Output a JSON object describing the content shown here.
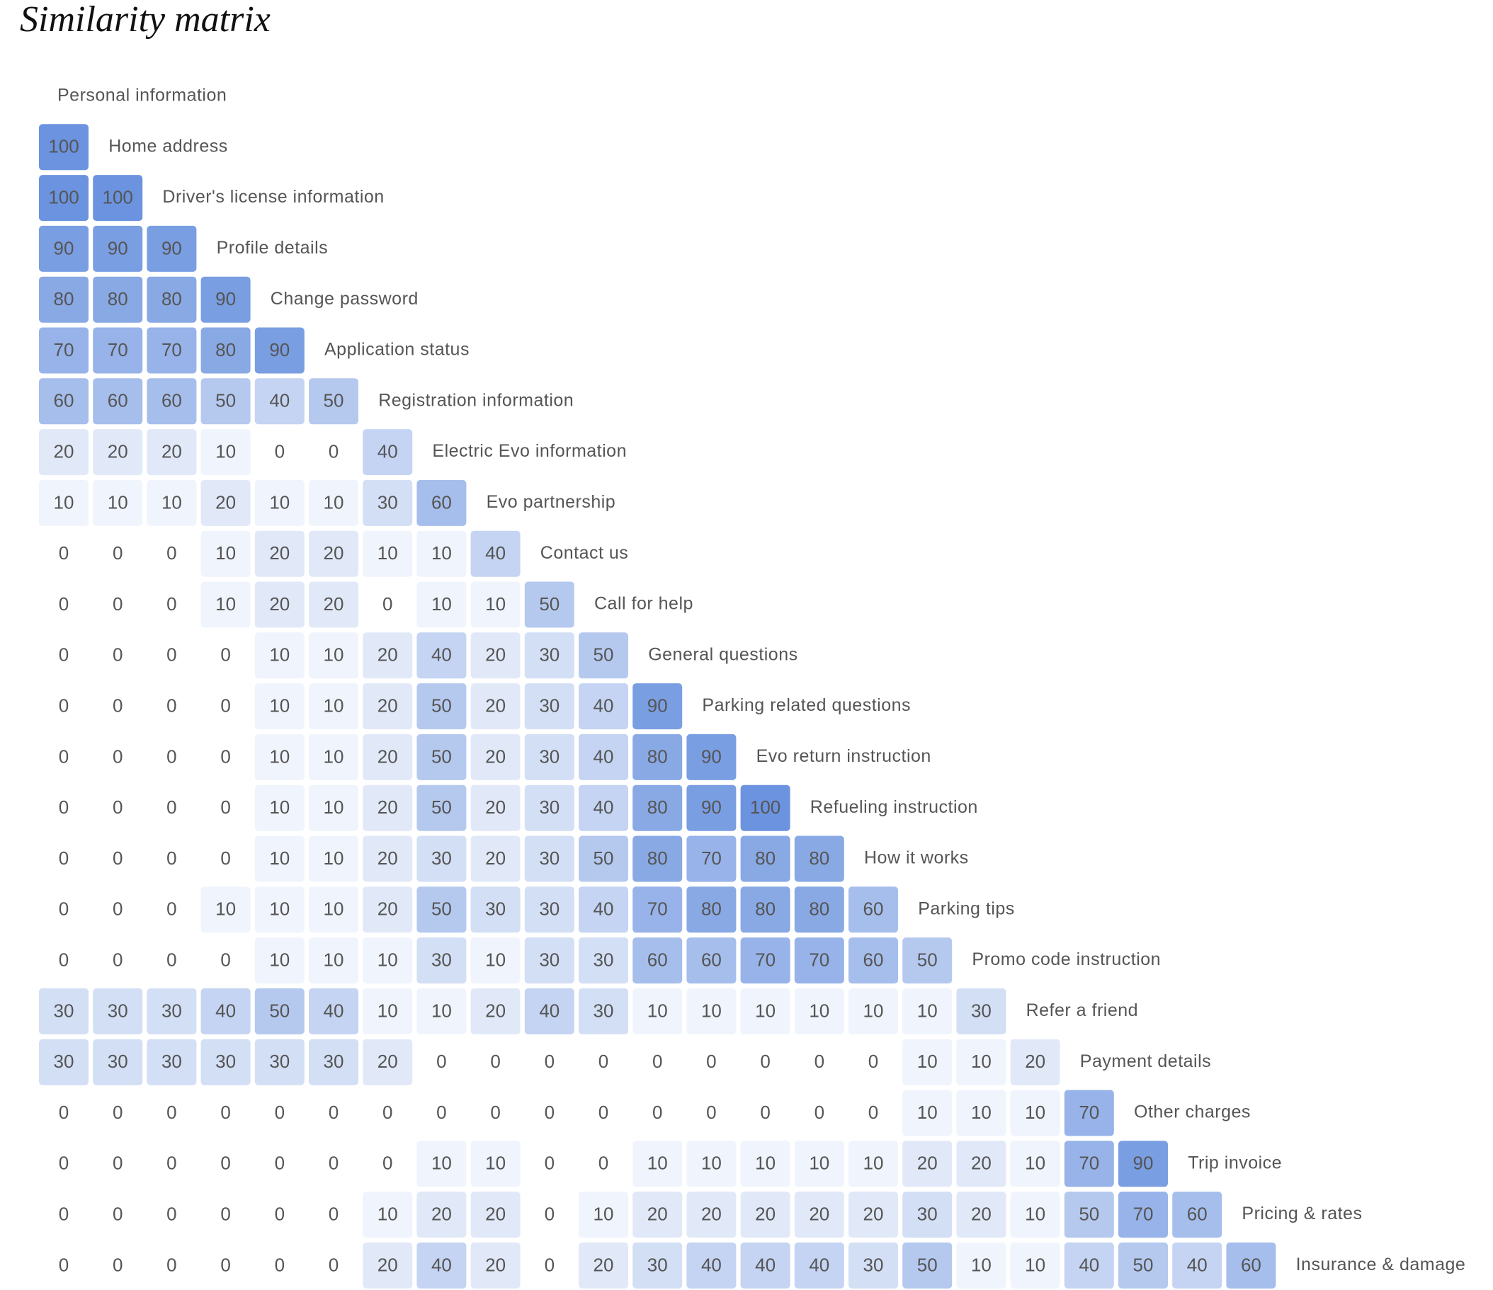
{
  "chart_data": {
    "type": "heatmap",
    "title": "Similarity matrix",
    "color": "#6b93df",
    "labels": [
      "Personal information",
      "Home address",
      "Driver's license information",
      "Profile details",
      "Change password",
      "Application status",
      "Registration information",
      "Electric Evo information",
      "Evo partnership",
      "Contact us",
      "Call for help",
      "General questions",
      "Parking related questions",
      "Evo return instruction",
      "Refueling instruction",
      "How it works",
      "Parking tips",
      "Promo code instruction",
      "Refer a friend",
      "Payment details",
      "Other charges",
      "Trip invoice",
      "Pricing & rates",
      "Insurance & damage"
    ],
    "matrix": [
      [
        100
      ],
      [
        100,
        100
      ],
      [
        90,
        90,
        90
      ],
      [
        80,
        80,
        80,
        90
      ],
      [
        70,
        70,
        70,
        80,
        90
      ],
      [
        60,
        60,
        60,
        50,
        40,
        50
      ],
      [
        20,
        20,
        20,
        10,
        0,
        0,
        40
      ],
      [
        10,
        10,
        10,
        20,
        10,
        10,
        30,
        60
      ],
      [
        0,
        0,
        0,
        10,
        20,
        20,
        10,
        10,
        40
      ],
      [
        0,
        0,
        0,
        10,
        20,
        20,
        0,
        10,
        10,
        50
      ],
      [
        0,
        0,
        0,
        0,
        10,
        10,
        20,
        40,
        20,
        30,
        50
      ],
      [
        0,
        0,
        0,
        0,
        10,
        10,
        20,
        50,
        20,
        30,
        40,
        90
      ],
      [
        0,
        0,
        0,
        0,
        10,
        10,
        20,
        50,
        20,
        30,
        40,
        80,
        90
      ],
      [
        0,
        0,
        0,
        0,
        10,
        10,
        20,
        50,
        20,
        30,
        40,
        80,
        90,
        100
      ],
      [
        0,
        0,
        0,
        0,
        10,
        10,
        20,
        30,
        20,
        30,
        50,
        80,
        70,
        80,
        80
      ],
      [
        0,
        0,
        0,
        10,
        10,
        10,
        20,
        50,
        30,
        30,
        40,
        70,
        80,
        80,
        80,
        60
      ],
      [
        0,
        0,
        0,
        0,
        10,
        10,
        10,
        30,
        10,
        30,
        30,
        60,
        60,
        70,
        70,
        60,
        50
      ],
      [
        30,
        30,
        30,
        40,
        50,
        40,
        10,
        10,
        20,
        40,
        30,
        10,
        10,
        10,
        10,
        10,
        10,
        30
      ],
      [
        30,
        30,
        30,
        30,
        30,
        30,
        20,
        0,
        0,
        0,
        0,
        0,
        0,
        0,
        0,
        0,
        10,
        10,
        20
      ],
      [
        0,
        0,
        0,
        0,
        0,
        0,
        0,
        0,
        0,
        0,
        0,
        0,
        0,
        0,
        0,
        0,
        10,
        10,
        10,
        70
      ],
      [
        0,
        0,
        0,
        0,
        0,
        0,
        0,
        10,
        10,
        0,
        0,
        10,
        10,
        10,
        10,
        10,
        20,
        20,
        10,
        70,
        90
      ],
      [
        0,
        0,
        0,
        0,
        0,
        0,
        10,
        20,
        20,
        0,
        10,
        20,
        20,
        20,
        20,
        20,
        30,
        20,
        10,
        50,
        70,
        60
      ],
      [
        0,
        0,
        0,
        0,
        0,
        0,
        20,
        40,
        20,
        0,
        20,
        30,
        40,
        40,
        40,
        30,
        50,
        10,
        10,
        40,
        50,
        40,
        60
      ]
    ]
  }
}
